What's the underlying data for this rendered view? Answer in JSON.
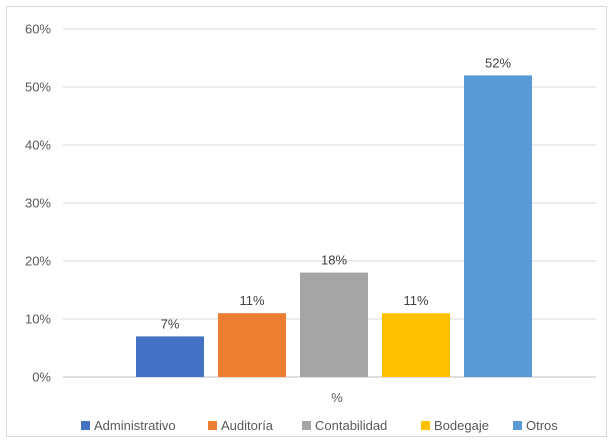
{
  "chart_data": {
    "type": "bar",
    "xlabel": "%",
    "categories": [
      "%"
    ],
    "series": [
      {
        "name": "Administrativo",
        "value": 0.07,
        "label": "7%",
        "color": "#4472c4"
      },
      {
        "name": "Auditoría",
        "value": 0.11,
        "label": "11%",
        "color": "#ed7d31"
      },
      {
        "name": "Contabilidad",
        "value": 0.18,
        "label": "18%",
        "color": "#a5a5a5"
      },
      {
        "name": "Bodegaje",
        "value": 0.11,
        "label": "11%",
        "color": "#ffc000"
      },
      {
        "name": "Otros",
        "value": 0.52,
        "label": "52%",
        "color": "#5b9bd5"
      }
    ],
    "ylim": [
      0,
      0.6
    ],
    "yticks": [
      "0%",
      "10%",
      "20%",
      "30%",
      "40%",
      "50%",
      "60%"
    ],
    "grid": true,
    "legend_position": "bottom"
  }
}
